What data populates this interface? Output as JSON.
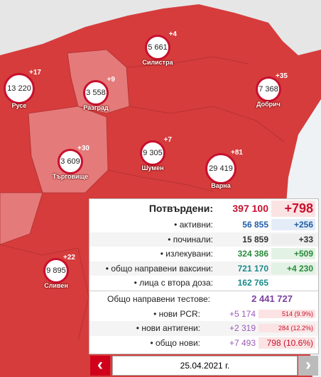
{
  "markers": [
    {
      "name": "Русе",
      "count": "13 220",
      "delta": "+17"
    },
    {
      "name": "Силистра",
      "count": "5 661",
      "delta": "+4"
    },
    {
      "name": "Разград",
      "count": "3 558",
      "delta": "+9"
    },
    {
      "name": "Добрич",
      "count": "7 368",
      "delta": "+35"
    },
    {
      "name": "Търговище",
      "count": "3 609",
      "delta": "+30"
    },
    {
      "name": "Шумен",
      "count": "9 305",
      "delta": "+7"
    },
    {
      "name": "Варна",
      "count": "29 419",
      "delta": "+81"
    },
    {
      "name": "Сливен",
      "count": "9 895",
      "delta": "+22"
    }
  ],
  "panel": {
    "confirmed": {
      "label": "Потвърдени:",
      "value": "397 100",
      "delta": "+798"
    },
    "rows": [
      {
        "label": "• активни:",
        "value": "56 855",
        "delta": "+256"
      },
      {
        "label": "• починали:",
        "value": "15 859",
        "delta": "+33"
      },
      {
        "label": "• излекувани:",
        "value": "324 386",
        "delta": "+509"
      },
      {
        "label": "• общо направени ваксини:",
        "value": "721 170",
        "delta": "+4 230"
      },
      {
        "label": "• лица с втора доза:",
        "value": "162 765"
      }
    ],
    "tests": {
      "label": "Общо направени тестове:",
      "value": "2 441 727"
    },
    "test_rows": [
      {
        "label": "• нови PCR:",
        "value": "+5 174",
        "positive": "514 (9.9%)"
      },
      {
        "label": "• нови антигени:",
        "value": "+2 319",
        "positive": "284 (12.2%)"
      },
      {
        "label": "• общо нови:",
        "value": "+7 493",
        "positive": "798 (10.6%)"
      }
    ]
  },
  "date_nav": {
    "date": "25.04.2021 г.",
    "prev": "‹",
    "next": "›"
  }
}
